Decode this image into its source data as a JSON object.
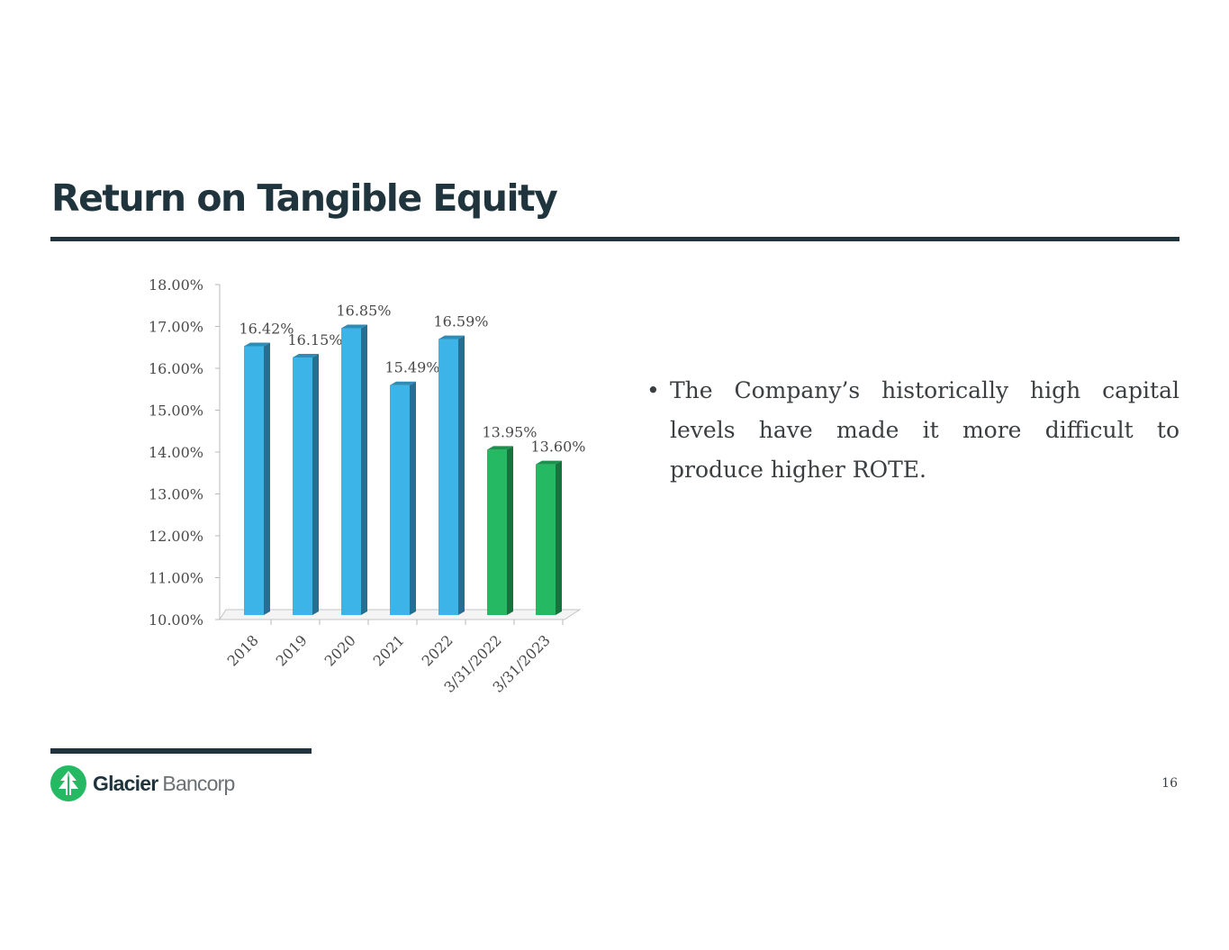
{
  "slide": {
    "title": "Return on Tangible Equity",
    "page_number": "16",
    "brand": {
      "name_strong": "Glacier",
      "name_light": "Bancorp",
      "icon": "tree-icon"
    },
    "bullets": [
      "The Company’s historically high capital levels have made it more difficult to produce higher ROTE."
    ],
    "colors": {
      "primary": "#1f343d",
      "bar_blue": "#3cb4e8",
      "bar_green": "#25b963",
      "text": "#3b3f42"
    }
  },
  "chart_data": {
    "type": "bar",
    "title": "",
    "xlabel": "",
    "ylabel": "",
    "categories": [
      "2018",
      "2019",
      "2020",
      "2021",
      "2022",
      "3/31/2022",
      "3/31/2023"
    ],
    "values": [
      16.42,
      16.15,
      16.85,
      15.49,
      16.59,
      13.95,
      13.6
    ],
    "value_labels": [
      "16.42%",
      "16.15%",
      "16.85%",
      "15.49%",
      "16.59%",
      "13.95%",
      "13.60%"
    ],
    "bar_colors": [
      "#3cb4e8",
      "#3cb4e8",
      "#3cb4e8",
      "#3cb4e8",
      "#3cb4e8",
      "#25b963",
      "#25b963"
    ],
    "ylim": [
      10,
      18
    ],
    "y_ticks": [
      10,
      11,
      12,
      13,
      14,
      15,
      16,
      17,
      18
    ],
    "y_tick_labels": [
      "10.00%",
      "11.00%",
      "12.00%",
      "13.00%",
      "14.00%",
      "15.00%",
      "16.00%",
      "17.00%",
      "18.00%"
    ],
    "grid": false,
    "legend": "none"
  }
}
